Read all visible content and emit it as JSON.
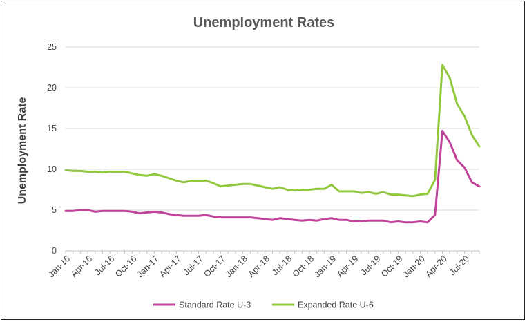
{
  "chart_data": {
    "type": "line",
    "title": "Unemployment Rates",
    "xlabel": "",
    "ylabel": "Unemployment Rate",
    "ylim": [
      0,
      25
    ],
    "yticks": [
      0,
      5,
      10,
      15,
      20,
      25
    ],
    "grid": true,
    "legend": "bottom",
    "x_tick_labels": [
      "Jan-16",
      "Apr-16",
      "Jul-16",
      "Oct-16",
      "Jan-17",
      "Apr-17",
      "Jul-17",
      "Oct-17",
      "Jan-18",
      "Apr-18",
      "Jul-18",
      "Oct-18",
      "Jan-19",
      "Apr-19",
      "Jul-19",
      "Oct-19",
      "Jan-20",
      "Apr-20",
      "Jul-20"
    ],
    "x": [
      "Jan-16",
      "Feb-16",
      "Mar-16",
      "Apr-16",
      "May-16",
      "Jun-16",
      "Jul-16",
      "Aug-16",
      "Sep-16",
      "Oct-16",
      "Nov-16",
      "Dec-16",
      "Jan-17",
      "Feb-17",
      "Mar-17",
      "Apr-17",
      "May-17",
      "Jun-17",
      "Jul-17",
      "Aug-17",
      "Sep-17",
      "Oct-17",
      "Nov-17",
      "Dec-17",
      "Jan-18",
      "Feb-18",
      "Mar-18",
      "Apr-18",
      "May-18",
      "Jun-18",
      "Jul-18",
      "Aug-18",
      "Sep-18",
      "Oct-18",
      "Nov-18",
      "Dec-18",
      "Jan-19",
      "Feb-19",
      "Mar-19",
      "Apr-19",
      "May-19",
      "Jun-19",
      "Jul-19",
      "Aug-19",
      "Sep-19",
      "Oct-19",
      "Nov-19",
      "Dec-19",
      "Jan-20",
      "Feb-20",
      "Mar-20",
      "Apr-20",
      "May-20",
      "Jun-20",
      "Jul-20",
      "Aug-20",
      "Sep-20"
    ],
    "series": [
      {
        "name": "Standard Rate U-3",
        "color": "#c0449a",
        "values": [
          4.9,
          4.9,
          5.0,
          5.0,
          4.8,
          4.9,
          4.9,
          4.9,
          4.9,
          4.8,
          4.6,
          4.7,
          4.8,
          4.7,
          4.5,
          4.4,
          4.3,
          4.3,
          4.3,
          4.4,
          4.2,
          4.1,
          4.1,
          4.1,
          4.1,
          4.1,
          4.0,
          3.9,
          3.8,
          4.0,
          3.9,
          3.8,
          3.7,
          3.8,
          3.7,
          3.9,
          4.0,
          3.8,
          3.8,
          3.6,
          3.6,
          3.7,
          3.7,
          3.7,
          3.5,
          3.6,
          3.5,
          3.5,
          3.6,
          3.5,
          4.4,
          14.7,
          13.3,
          11.1,
          10.2,
          8.4,
          7.9
        ]
      },
      {
        "name": "Expanded Rate U-6",
        "color": "#92c83e",
        "values": [
          9.9,
          9.8,
          9.8,
          9.7,
          9.7,
          9.6,
          9.7,
          9.7,
          9.7,
          9.5,
          9.3,
          9.2,
          9.4,
          9.2,
          8.9,
          8.6,
          8.4,
          8.6,
          8.6,
          8.6,
          8.3,
          7.9,
          8.0,
          8.1,
          8.2,
          8.2,
          8.0,
          7.8,
          7.6,
          7.8,
          7.5,
          7.4,
          7.5,
          7.5,
          7.6,
          7.6,
          8.1,
          7.3,
          7.3,
          7.3,
          7.1,
          7.2,
          7.0,
          7.2,
          6.9,
          6.9,
          6.8,
          6.7,
          6.9,
          7.0,
          8.7,
          22.8,
          21.2,
          18.0,
          16.5,
          14.2,
          12.8
        ]
      }
    ]
  }
}
